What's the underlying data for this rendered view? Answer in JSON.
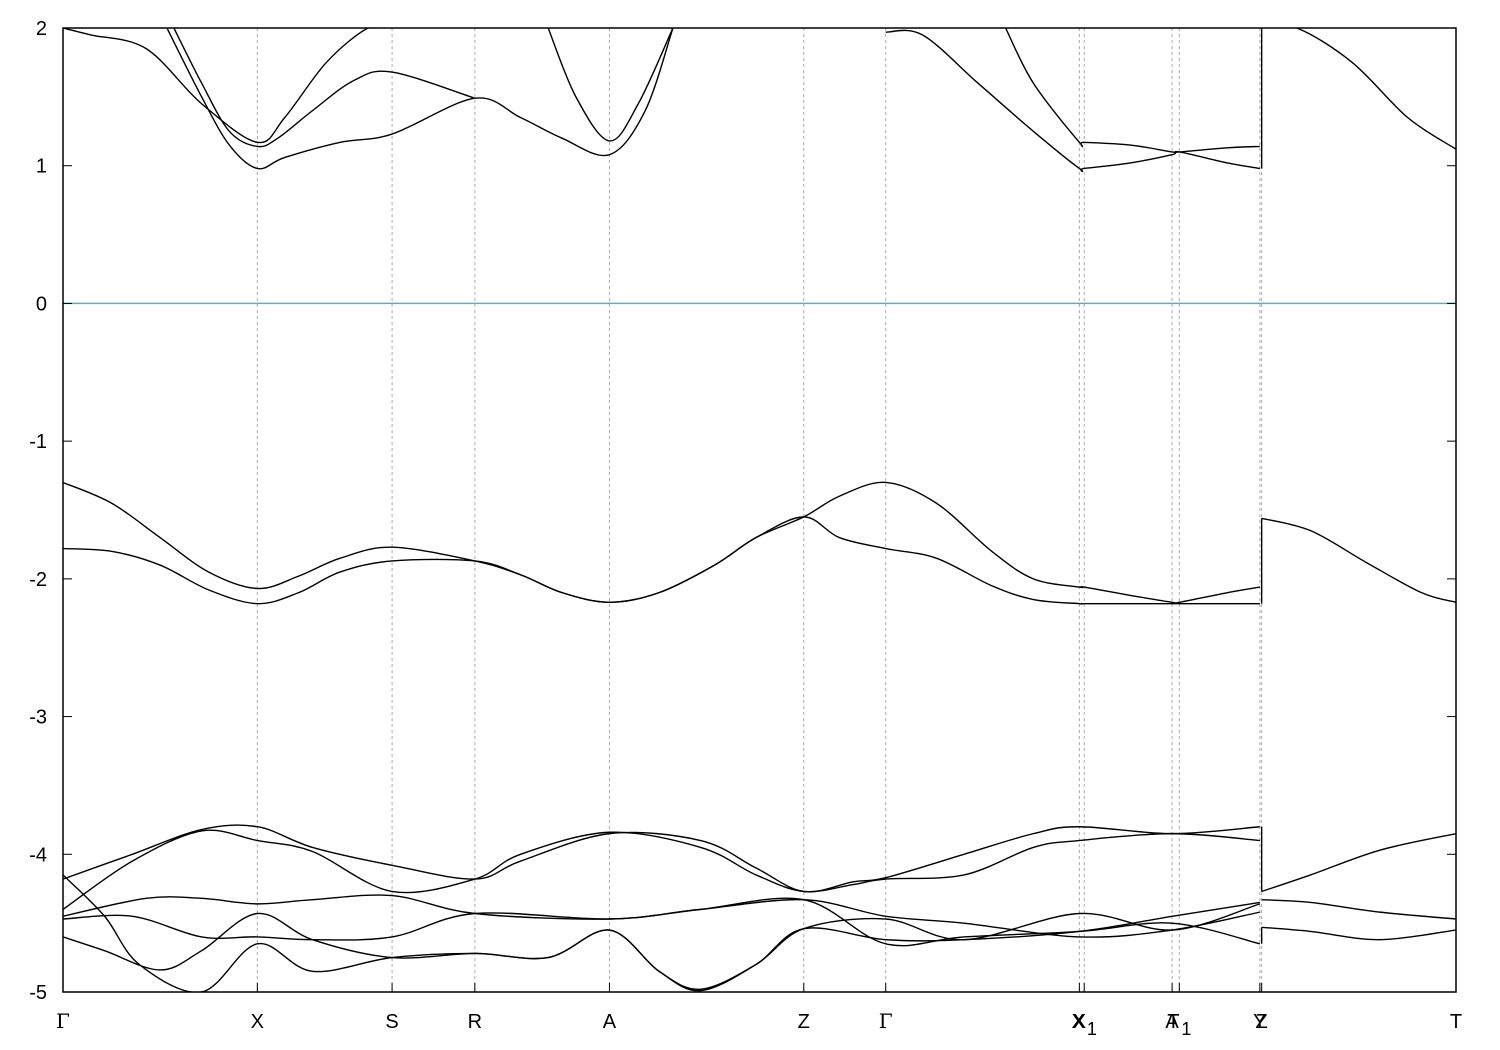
{
  "chart_data": {
    "type": "line",
    "title": "",
    "xlabel": "",
    "ylabel": "",
    "ylim": [
      -5,
      2
    ],
    "y_ticks": [
      "2",
      "1",
      "0",
      "-1",
      "-2",
      "-3",
      "-4",
      "-5"
    ],
    "grid": false,
    "legend": "none",
    "fermi_level": 0,
    "k_points": [
      {
        "label": "Γ",
        "k": 0.0
      },
      {
        "label": "X",
        "k": 1.402
      },
      {
        "label": "S",
        "k": 2.374
      },
      {
        "label": "R",
        "k": 2.971
      },
      {
        "label": "A",
        "k": 3.942
      },
      {
        "label": "Z",
        "k": 5.344
      },
      {
        "label": "Γ",
        "k": 5.935
      },
      {
        "label": "X",
        "k": 7.332
      },
      {
        "label": "X₁",
        "k": 7.367
      },
      {
        "label": "A",
        "k": 8.001
      },
      {
        "label": "T₁",
        "k": 8.053
      },
      {
        "label": "Y",
        "k": 8.634
      },
      {
        "label": "Z",
        "k": 8.647
      },
      {
        "label": "T",
        "k": 10.049
      }
    ],
    "colors": {
      "bands": "#000000",
      "fermi": "#4fb3c8",
      "guides": "#aaaaaa"
    },
    "series": [
      {
        "k": [
          0,
          0.35,
          0.7,
          1.05,
          1.402,
          1.7,
          2.0,
          2.374,
          2.971,
          3.3,
          3.6,
          3.942,
          4.3,
          4.7,
          5.0,
          5.344,
          5.6,
          5.935,
          6.3,
          6.7,
          7.0,
          7.332,
          7.367,
          7.7,
          8.001,
          8.053,
          8.4,
          8.634
        ],
        "e": [
          -1.3,
          -1.45,
          -1.7,
          -1.95,
          -2.07,
          -1.98,
          -1.85,
          -1.77,
          -1.87,
          -1.97,
          -2.1,
          -2.17,
          -2.1,
          -1.9,
          -1.7,
          -1.55,
          -1.4,
          -1.3,
          -1.45,
          -1.8,
          -2.0,
          -2.06,
          -2.06,
          -2.12,
          -2.17,
          -2.17,
          -2.1,
          -2.06
        ]
      },
      {
        "k": [
          0,
          0.35,
          0.7,
          1.05,
          1.402,
          1.7,
          2.0,
          2.374,
          2.971,
          3.3,
          3.6,
          3.942,
          4.3,
          4.7,
          5.0,
          5.344,
          5.6,
          5.935,
          6.3,
          6.7,
          7.0,
          7.332,
          7.367,
          7.7,
          8.001,
          8.053,
          8.4,
          8.634
        ],
        "e": [
          -1.78,
          -1.8,
          -1.9,
          -2.08,
          -2.18,
          -2.1,
          -1.95,
          -1.87,
          -1.87,
          -1.97,
          -2.1,
          -2.17,
          -2.1,
          -1.9,
          -1.7,
          -1.55,
          -1.7,
          -1.78,
          -1.85,
          -2.05,
          -2.15,
          -2.18,
          -2.18,
          -2.18,
          -2.18,
          -2.18,
          -2.18,
          -2.18
        ]
      },
      {
        "k": [
          8.647,
          9.0,
          9.4,
          9.8,
          10.049
        ],
        "e": [
          -1.56,
          -1.65,
          -1.88,
          -2.1,
          -2.17
        ]
      },
      {
        "k": [
          0,
          0.2,
          0.6,
          1.0,
          1.402,
          1.6,
          1.9,
          2.2,
          2.374
        ],
        "e": [
          2.0,
          1.95,
          1.85,
          1.45,
          1.17,
          1.35,
          1.75,
          2.0,
          2.0
        ]
      },
      {
        "k": [
          0.8,
          1.0,
          1.2,
          1.402,
          1.55,
          1.8,
          2.1,
          2.374,
          2.971
        ],
        "e": [
          2.0,
          1.6,
          1.25,
          1.14,
          1.2,
          1.4,
          1.62,
          1.68,
          1.49
        ]
      },
      {
        "k": [
          0.75,
          1.0,
          1.2,
          1.402,
          1.6,
          2.0,
          2.374,
          2.971,
          3.3,
          3.6,
          3.942,
          4.2,
          4.4
        ],
        "e": [
          2.0,
          1.5,
          1.15,
          0.98,
          1.06,
          1.17,
          1.23,
          1.49,
          1.35,
          1.2,
          1.08,
          1.4,
          2.0
        ]
      },
      {
        "k": [
          3.5,
          3.7,
          3.942,
          4.15,
          4.4
        ],
        "e": [
          2.0,
          1.5,
          1.18,
          1.45,
          2.0
        ]
      },
      {
        "k": [
          5.935,
          6.2,
          6.6,
          7.0,
          7.332,
          7.367,
          7.7,
          8.001,
          8.053,
          8.4,
          8.634
        ],
        "e": [
          1.97,
          1.95,
          1.6,
          1.25,
          0.98,
          0.98,
          1.02,
          1.08,
          1.1,
          1.02,
          0.98
        ]
      },
      {
        "k": [
          6.8,
          7.0,
          7.332,
          7.367,
          7.7,
          8.001,
          8.053,
          8.4,
          8.634
        ],
        "e": [
          2.0,
          1.6,
          1.17,
          1.17,
          1.15,
          1.1,
          1.1,
          1.13,
          1.14
        ]
      },
      {
        "k": [
          8.647,
          8.9,
          9.3,
          9.7,
          10.049
        ],
        "e": [
          2.0,
          2.0,
          1.75,
          1.35,
          1.12
        ]
      },
      {
        "k": [
          0,
          0.5,
          1.0,
          1.402,
          1.8,
          2.374,
          2.971,
          3.3,
          3.942,
          4.6,
          5.0,
          5.344,
          5.7,
          5.935,
          6.5,
          7.0,
          7.332,
          8.001,
          8.634
        ],
        "e": [
          -4.18,
          -4.0,
          -3.82,
          -3.8,
          -3.95,
          -4.08,
          -4.18,
          -4.05,
          -3.85,
          -3.9,
          -4.1,
          -4.27,
          -4.2,
          -4.17,
          -4.0,
          -3.85,
          -3.8,
          -3.85,
          -3.8
        ]
      },
      {
        "k": [
          0,
          0.5,
          1.0,
          1.402,
          1.8,
          2.374,
          2.971,
          3.3,
          3.942,
          4.6,
          5.0,
          5.344,
          5.7,
          5.935,
          6.5,
          7.0,
          7.332,
          8.001,
          8.634
        ],
        "e": [
          -4.4,
          -4.05,
          -3.83,
          -3.9,
          -3.98,
          -4.27,
          -4.18,
          -4.0,
          -3.84,
          -3.95,
          -4.15,
          -4.27,
          -4.22,
          -4.18,
          -4.15,
          -3.95,
          -3.9,
          -3.85,
          -3.9
        ]
      },
      {
        "k": [
          0,
          0.6,
          1.0,
          1.402,
          1.8,
          2.374,
          2.971,
          3.942,
          4.6,
          5.344,
          5.935,
          6.5,
          7.332,
          8.001,
          8.634
        ],
        "e": [
          -4.45,
          -4.32,
          -4.32,
          -4.36,
          -4.33,
          -4.3,
          -4.43,
          -4.47,
          -4.4,
          -4.33,
          -4.45,
          -4.5,
          -4.6,
          -4.55,
          -4.42
        ]
      },
      {
        "k": [
          0,
          0.5,
          1.0,
          1.402,
          1.8,
          2.374,
          2.971,
          3.942,
          4.6,
          5.344,
          5.935,
          6.5,
          7.332,
          8.001,
          8.634
        ],
        "e": [
          -4.47,
          -4.45,
          -4.6,
          -4.6,
          -4.62,
          -4.6,
          -4.43,
          -4.47,
          -4.4,
          -4.33,
          -4.65,
          -4.6,
          -4.56,
          -4.5,
          -4.65
        ]
      },
      {
        "k": [
          0,
          0.3,
          0.7,
          1.0,
          1.402,
          1.8,
          2.374,
          2.971,
          3.5,
          3.942,
          4.3,
          4.6,
          5.0,
          5.344,
          5.935,
          6.5,
          7.332,
          8.001,
          8.634
        ],
        "e": [
          -4.6,
          -4.7,
          -4.84,
          -4.7,
          -4.43,
          -4.62,
          -4.75,
          -4.72,
          -4.75,
          -4.55,
          -4.85,
          -4.98,
          -4.8,
          -4.54,
          -4.47,
          -4.62,
          -4.43,
          -4.55,
          -4.36
        ]
      },
      {
        "k": [
          0,
          0.3,
          0.55,
          1.0,
          1.402,
          1.8,
          2.374,
          2.971,
          3.5,
          3.942,
          4.3,
          4.6,
          5.0,
          5.344,
          5.935,
          6.5,
          7.332,
          8.001,
          8.634
        ],
        "e": [
          -4.15,
          -4.45,
          -4.8,
          -5.0,
          -4.65,
          -4.85,
          -4.75,
          -4.72,
          -4.75,
          -4.55,
          -4.85,
          -4.99,
          -4.8,
          -4.54,
          -4.62,
          -4.62,
          -4.56,
          -4.45,
          -4.35
        ]
      },
      {
        "k": [
          8.647,
          9.0,
          9.5,
          10.049
        ],
        "e": [
          -4.27,
          -4.15,
          -3.97,
          -3.85
        ]
      },
      {
        "k": [
          8.647,
          9.0,
          9.5,
          10.049
        ],
        "e": [
          -4.33,
          -4.35,
          -4.42,
          -4.47
        ]
      },
      {
        "k": [
          8.647,
          9.0,
          9.5,
          10.049
        ],
        "e": [
          -4.53,
          -4.56,
          -4.62,
          -4.55
        ]
      }
    ]
  }
}
